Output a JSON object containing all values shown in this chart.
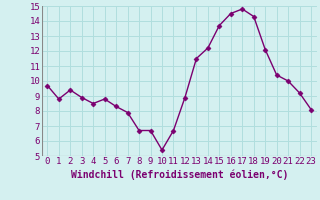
{
  "x": [
    0,
    1,
    2,
    3,
    4,
    5,
    6,
    7,
    8,
    9,
    10,
    11,
    12,
    13,
    14,
    15,
    16,
    17,
    18,
    19,
    20,
    21,
    22,
    23
  ],
  "y": [
    9.7,
    8.8,
    9.4,
    8.9,
    8.5,
    8.8,
    8.3,
    7.9,
    6.7,
    6.7,
    5.4,
    6.7,
    8.9,
    11.5,
    12.2,
    13.7,
    14.5,
    14.8,
    14.3,
    12.1,
    10.4,
    10.0,
    9.2,
    8.1
  ],
  "line_color": "#7B0070",
  "marker": "D",
  "marker_size": 2.5,
  "bg_color": "#d4f0f0",
  "grid_color": "#b0dede",
  "xlabel": "Windchill (Refroidissement éolien,°C)",
  "ylim": [
    5,
    15
  ],
  "xlim_min": -0.5,
  "xlim_max": 23.5,
  "yticks": [
    5,
    6,
    7,
    8,
    9,
    10,
    11,
    12,
    13,
    14,
    15
  ],
  "xticks": [
    0,
    1,
    2,
    3,
    4,
    5,
    6,
    7,
    8,
    9,
    10,
    11,
    12,
    13,
    14,
    15,
    16,
    17,
    18,
    19,
    20,
    21,
    22,
    23
  ],
  "tick_fontsize": 6.5,
  "xlabel_fontsize": 7.0,
  "line_width": 1.0
}
